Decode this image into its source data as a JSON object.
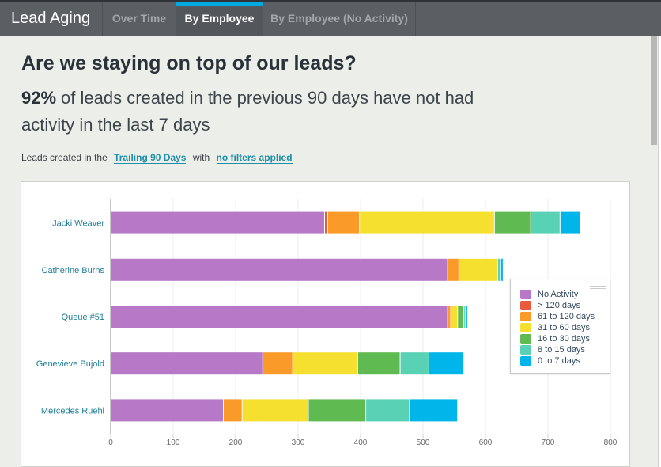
{
  "app": {
    "title": "Lead Aging"
  },
  "tabs": [
    {
      "label": "Over Time",
      "active": false
    },
    {
      "label": "By Employee",
      "active": true
    },
    {
      "label": "By Employee (No Activity)",
      "active": false
    }
  ],
  "header": {
    "headline": "Are we staying on top of our leads?",
    "stat": "92%",
    "stat_text": "of leads created in the previous 90 days have not had activity in the last 7 days"
  },
  "filters": {
    "prefix": "Leads created in the",
    "period_link": "Trailing 90 Days",
    "middle": "with",
    "filter_link": "no filters applied"
  },
  "chart_data": {
    "type": "bar",
    "orientation": "horizontal",
    "stacked": true,
    "categories": [
      "Jacki Weaver",
      "Catherine Burns",
      "Queue #51",
      "Genevieve Bujold",
      "Mercedes Ruehl"
    ],
    "series": [
      {
        "name": "No Activity",
        "color": "#b678c7",
        "values": [
          343,
          540,
          540,
          244,
          181
        ]
      },
      {
        "name": "> 120 days",
        "color": "#ea5a3d",
        "values": [
          5,
          0,
          0,
          0,
          0
        ]
      },
      {
        "name": "61 to 120 days",
        "color": "#fa9a28",
        "values": [
          51,
          18,
          5,
          48,
          30
        ]
      },
      {
        "name": "31 to 60 days",
        "color": "#f5e030",
        "values": [
          216,
          62,
          11,
          104,
          106
        ]
      },
      {
        "name": "16 to 30 days",
        "color": "#60ba52",
        "values": [
          58,
          0,
          10,
          68,
          92
        ]
      },
      {
        "name": "8 to 15 days",
        "color": "#58d1b5",
        "values": [
          47,
          5,
          3,
          46,
          70
        ]
      },
      {
        "name": "0 to 7 days",
        "color": "#00b5e9",
        "values": [
          33,
          4,
          3,
          56,
          77
        ]
      }
    ],
    "xlim": [
      0,
      800
    ],
    "xticks": [
      0,
      100,
      200,
      300,
      400,
      500,
      600,
      700,
      800
    ],
    "title": "",
    "xlabel": "",
    "ylabel": "",
    "grid": true,
    "legend_position": "right"
  }
}
